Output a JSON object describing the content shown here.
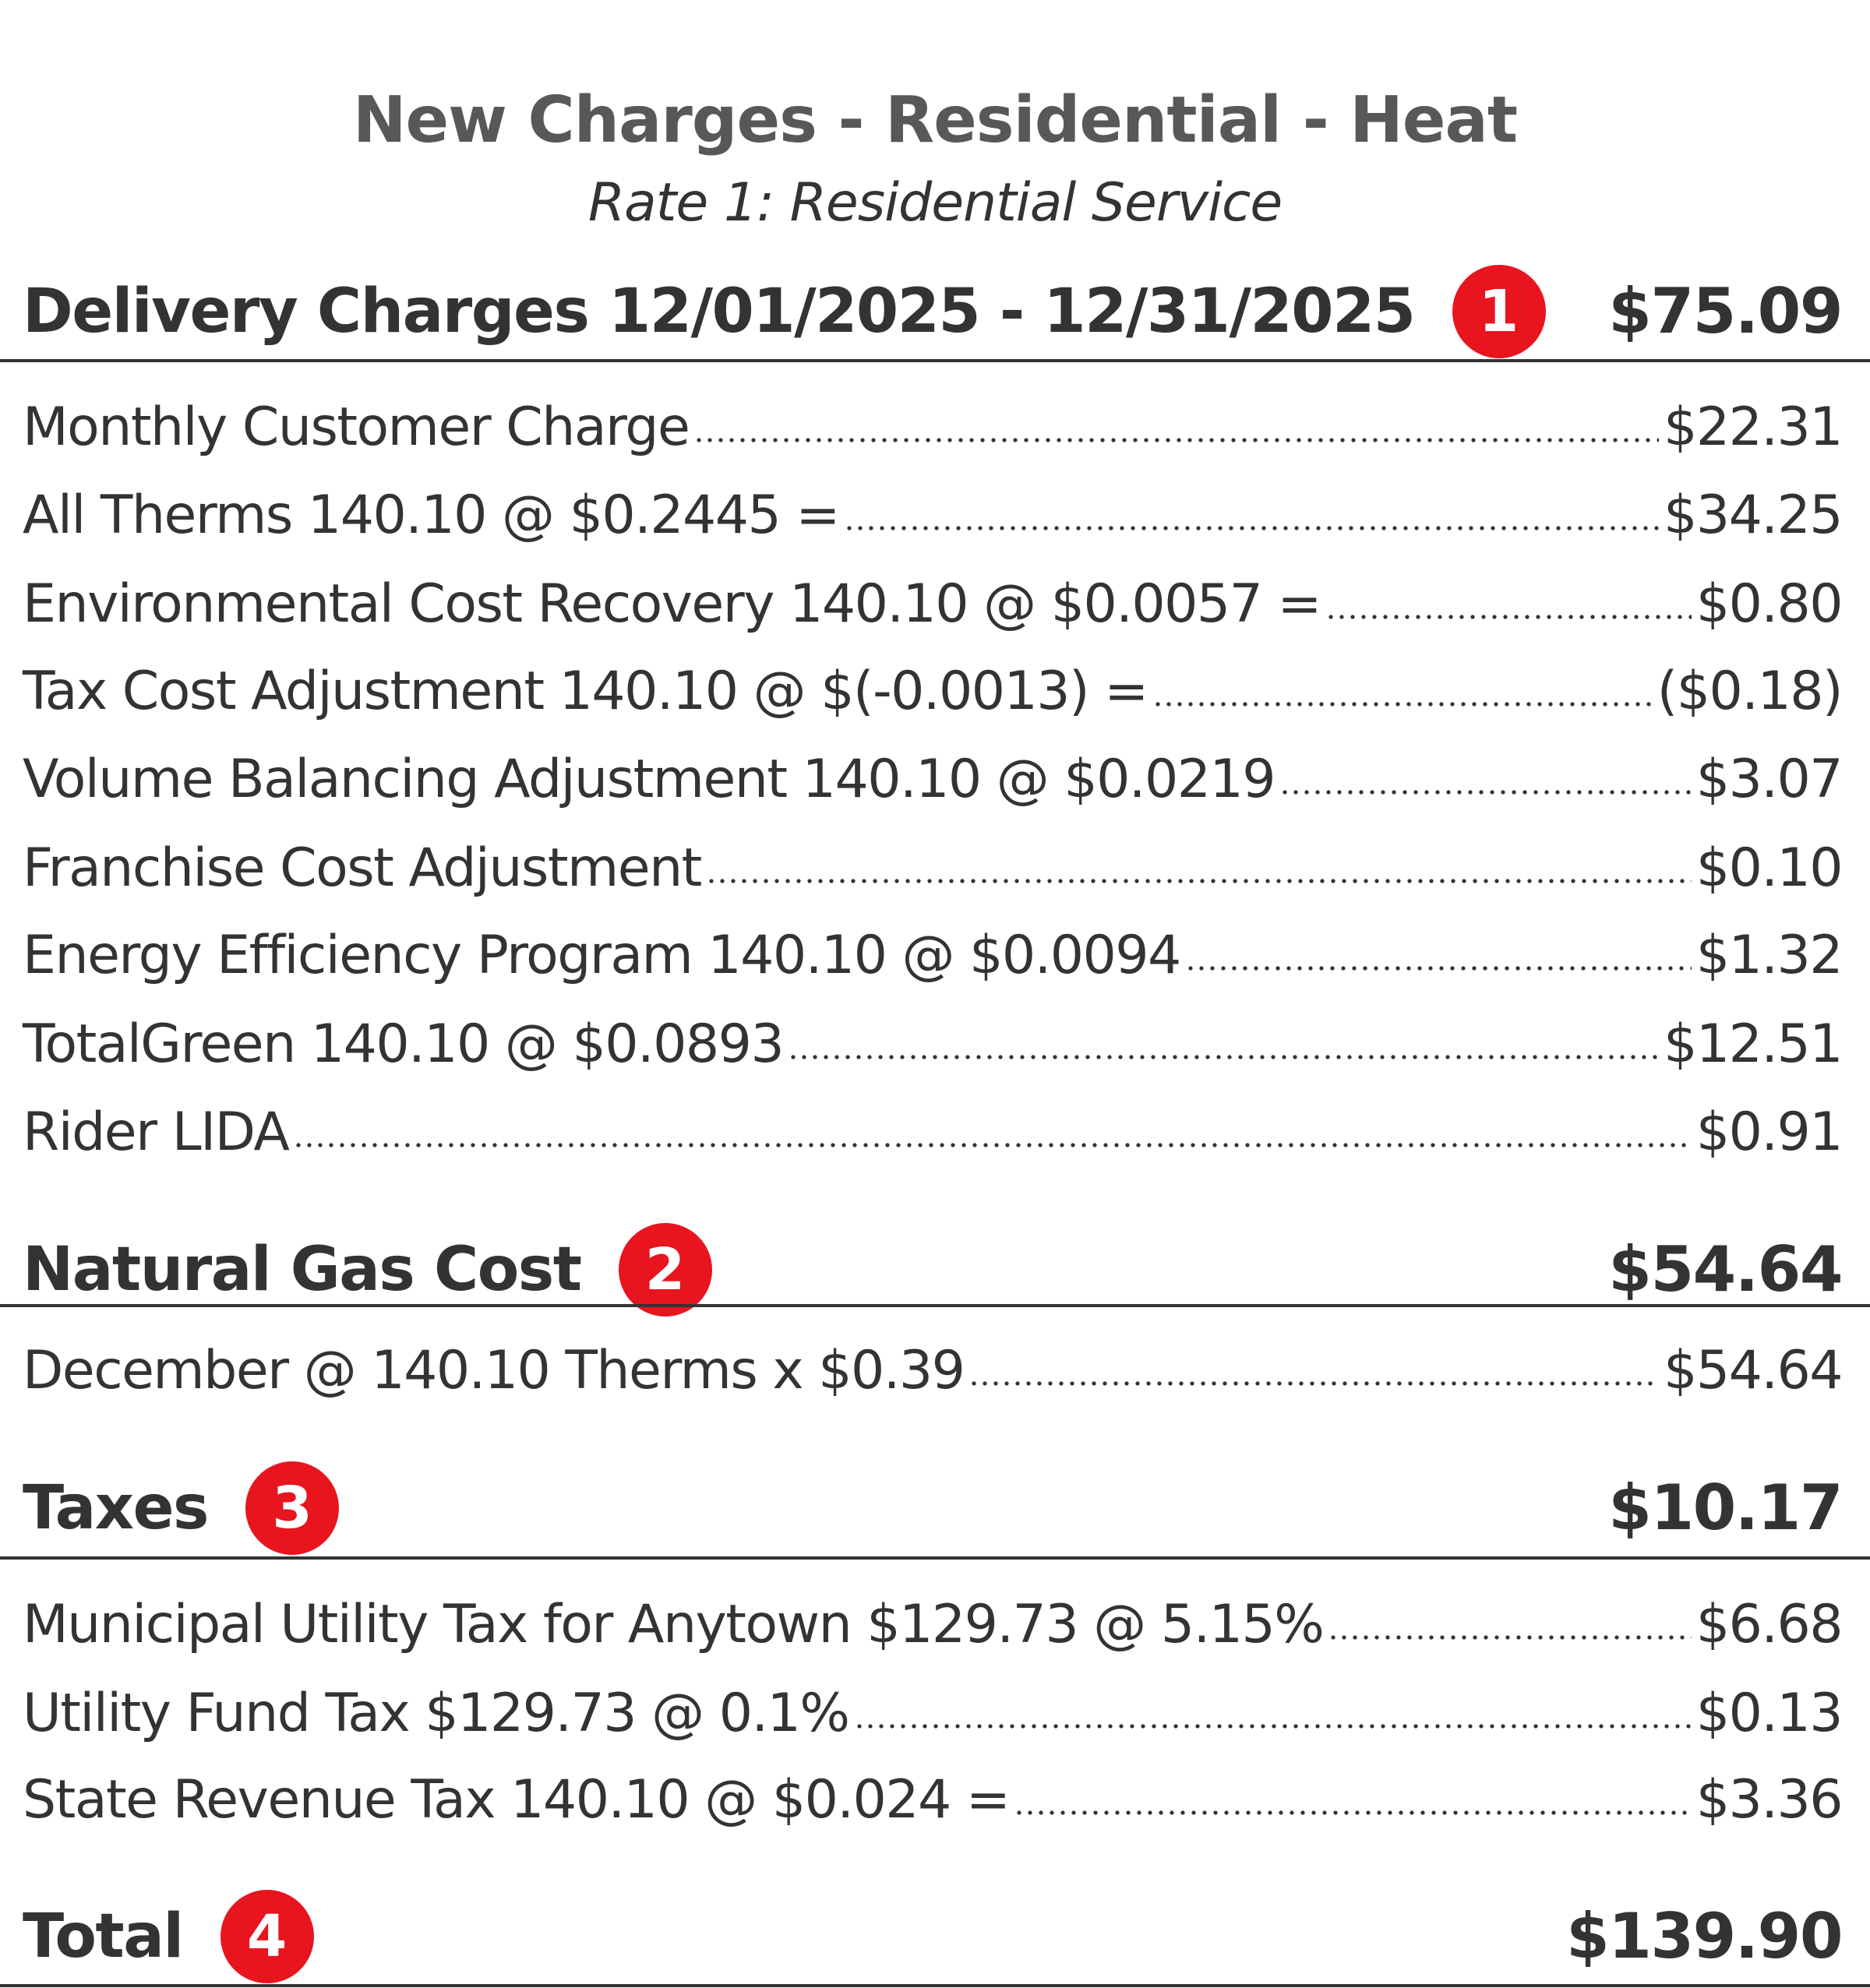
{
  "title": "New Charges - Residential - Heat",
  "subtitle": "Rate 1: Residential Service",
  "accent_color": "#e8141e",
  "sections": [
    {
      "heading": "Delivery Charges 12/01/2025 - 12/31/2025",
      "badge": "1",
      "amount": "$75.09",
      "items": [
        {
          "label": "Monthly Customer Charge",
          "value": "$22.31"
        },
        {
          "label": "All Therms 140.10 @ $0.2445 =",
          "value": "$34.25"
        },
        {
          "label": "Environmental Cost Recovery 140.10 @ $0.0057 =",
          "value": "$0.80"
        },
        {
          "label": "Tax Cost Adjustment 140.10 @ $(-0.0013) =",
          "value": "($0.18)"
        },
        {
          "label": "Volume Balancing Adjustment 140.10 @ $0.0219",
          "value": "$3.07"
        },
        {
          "label": "Franchise Cost Adjustment",
          "value": "$0.10"
        },
        {
          "label": "Energy Efficiency Program 140.10 @ $0.0094",
          "value": "$1.32"
        },
        {
          "label": "TotalGreen 140.10 @ $0.0893",
          "value": "$12.51"
        },
        {
          "label": "Rider LIDA",
          "value": "$0.91"
        }
      ]
    },
    {
      "heading": "Natural Gas Cost",
      "badge": "2",
      "amount": "$54.64",
      "items": [
        {
          "label": "December @ 140.10 Therms x $0.39",
          "value": "$54.64"
        }
      ]
    },
    {
      "heading": "Taxes",
      "badge": "3",
      "amount": "$10.17",
      "items": [
        {
          "label": "Municipal Utility Tax for Anytown $129.73 @ 5.15%",
          "value": "$6.68"
        },
        {
          "label": "Utility Fund Tax $129.73 @ 0.1%",
          "value": "$0.13"
        },
        {
          "label": "State Revenue Tax 140.10 @ $0.024 =",
          "value": "$3.36"
        }
      ]
    }
  ],
  "total": {
    "label": "Total",
    "badge": "4",
    "amount": "$139.90"
  }
}
